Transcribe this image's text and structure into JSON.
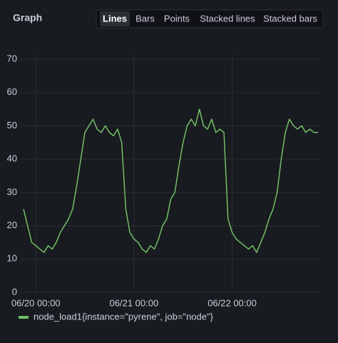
{
  "header": {
    "title": "Graph",
    "tabs": [
      {
        "label": "Lines",
        "active": true
      },
      {
        "label": "Bars",
        "active": false
      },
      {
        "label": "Points",
        "active": false
      },
      {
        "label": "Stacked lines",
        "active": false
      },
      {
        "label": "Stacked bars",
        "active": false
      }
    ]
  },
  "chart_data": {
    "type": "line",
    "x": [
      "06/19 21:00",
      "06/19 22:00",
      "06/19 23:00",
      "06/20 00:00",
      "06/20 01:00",
      "06/20 02:00",
      "06/20 03:00",
      "06/20 04:00",
      "06/20 05:00",
      "06/20 06:00",
      "06/20 07:00",
      "06/20 08:00",
      "06/20 09:00",
      "06/20 10:00",
      "06/20 11:00",
      "06/20 12:00",
      "06/20 13:00",
      "06/20 14:00",
      "06/20 15:00",
      "06/20 16:00",
      "06/20 17:00",
      "06/20 18:00",
      "06/20 19:00",
      "06/20 20:00",
      "06/20 21:00",
      "06/20 22:00",
      "06/20 23:00",
      "06/21 00:00",
      "06/21 01:00",
      "06/21 02:00",
      "06/21 03:00",
      "06/21 04:00",
      "06/21 05:00",
      "06/21 06:00",
      "06/21 07:00",
      "06/21 08:00",
      "06/21 09:00",
      "06/21 10:00",
      "06/21 11:00",
      "06/21 12:00",
      "06/21 13:00",
      "06/21 14:00",
      "06/21 15:00",
      "06/21 16:00",
      "06/21 17:00",
      "06/21 18:00",
      "06/21 19:00",
      "06/21 20:00",
      "06/21 21:00",
      "06/21 22:00",
      "06/21 23:00",
      "06/22 00:00",
      "06/22 01:00",
      "06/22 02:00",
      "06/22 03:00",
      "06/22 04:00",
      "06/22 05:00",
      "06/22 06:00",
      "06/22 07:00",
      "06/22 08:00",
      "06/22 09:00",
      "06/22 10:00",
      "06/22 11:00",
      "06/22 12:00",
      "06/22 13:00",
      "06/22 14:00",
      "06/22 15:00",
      "06/22 16:00",
      "06/22 17:00",
      "06/22 18:00",
      "06/22 19:00",
      "06/22 20:00",
      "06/22 21:00"
    ],
    "series": [
      {
        "name": "node_load1{instance=\"pyrene\", job=\"node\"}",
        "color": "#73bf69",
        "values": [
          25,
          20,
          15,
          14,
          13,
          12,
          14,
          13,
          15,
          18,
          20,
          22,
          25,
          32,
          40,
          48,
          50,
          52,
          49,
          48,
          50,
          48,
          47,
          49,
          45,
          25,
          18,
          16,
          15,
          13,
          12,
          14,
          13,
          16,
          20,
          22,
          28,
          30,
          38,
          45,
          50,
          52,
          50,
          55,
          50,
          49,
          52,
          48,
          49,
          48,
          22,
          18,
          16,
          15,
          14,
          13,
          14,
          12,
          15,
          18,
          22,
          25,
          30,
          40,
          48,
          52,
          50,
          49,
          50,
          48,
          49,
          48,
          48
        ]
      }
    ],
    "xticks": [
      "06/20 00:00",
      "06/21 00:00",
      "06/22 00:00"
    ],
    "ylim": [
      0,
      70
    ],
    "yticks": [
      0,
      10,
      20,
      30,
      40,
      50,
      60,
      70
    ],
    "grid": true
  }
}
